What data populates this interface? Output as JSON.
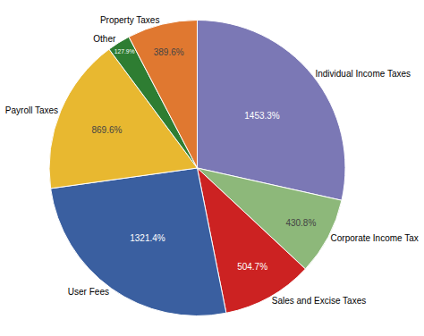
{
  "chart_data": {
    "type": "pie",
    "categories": [
      "Individual Income Taxes",
      "Corporate Income Tax",
      "Sales and Excise Taxes",
      "User Fees",
      "Payroll Taxes",
      "Other",
      "Property Taxes"
    ],
    "values": [
      1453.3,
      430.8,
      504.7,
      1321.4,
      869.6,
      127.9,
      389.6
    ],
    "value_labels": [
      "1453.3%",
      "430.8%",
      "504.7%",
      "1321.4%",
      "869.6%",
      "127.9%",
      "389.6%"
    ],
    "colors": [
      "#7b78b5",
      "#8db87a",
      "#cc2222",
      "#3a5fa0",
      "#e8b830",
      "#2e7d32",
      "#e07830"
    ],
    "data_labels": true
  }
}
